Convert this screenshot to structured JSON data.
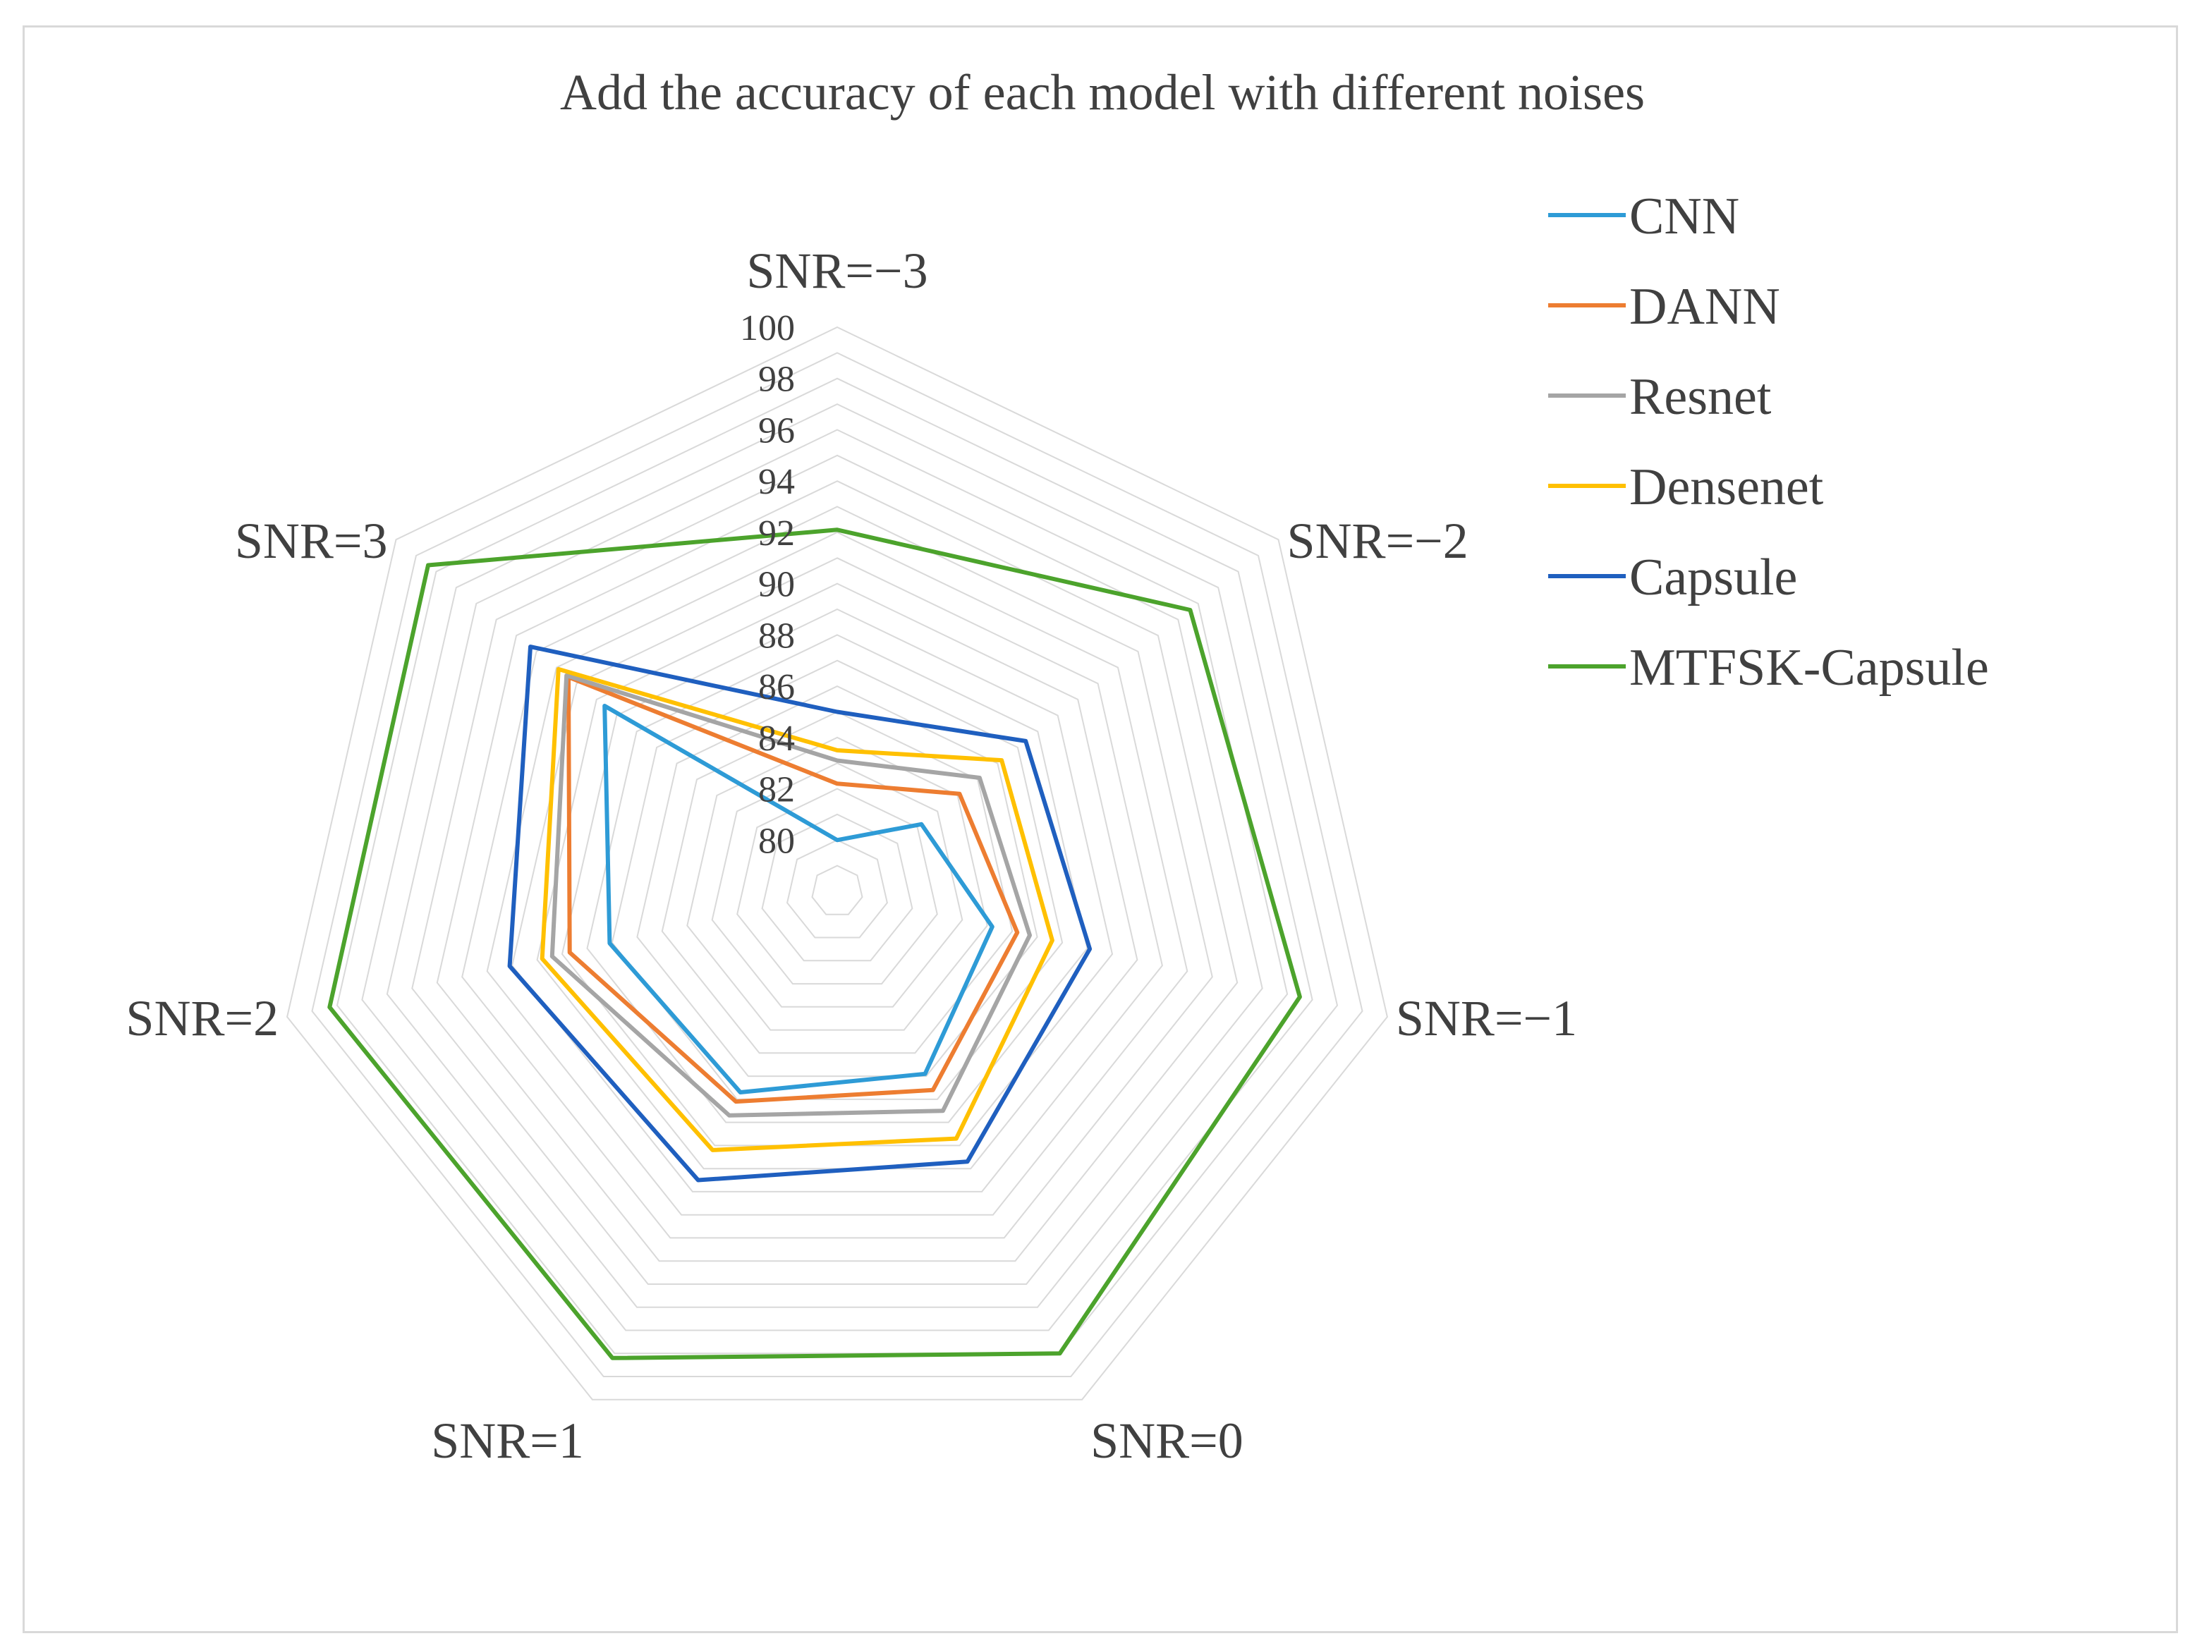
{
  "chart_data": {
    "type": "radar",
    "title": "Add the accuracy of each model with different noises",
    "axes": [
      "SNR=−3",
      "SNR=−2",
      "SNR=−1",
      "SNR=0",
      "SNR=1",
      "SNR=2",
      "SNR=3"
    ],
    "rlim": [
      78,
      100
    ],
    "ticks": [
      80,
      82,
      84,
      86,
      88,
      90,
      92,
      94,
      96,
      98,
      100
    ],
    "grid": true,
    "legend_position": "right",
    "series": [
      {
        "name": "CNN",
        "color": "#2E9BD6",
        "values": [
          80.0,
          82.2,
          84.2,
          85.9,
          86.7,
          87.1,
          89.6
        ]
      },
      {
        "name": "DANN",
        "color": "#ED7D31",
        "values": [
          82.2,
          84.1,
          85.2,
          86.6,
          87.1,
          88.7,
          91.4
        ]
      },
      {
        "name": "Resnet",
        "color": "#A5A5A5",
        "values": [
          83.1,
          85.1,
          85.7,
          87.5,
          87.7,
          89.4,
          91.5
        ]
      },
      {
        "name": "Densenet",
        "color": "#FFC000",
        "values": [
          83.5,
          86.2,
          86.6,
          88.7,
          89.2,
          89.8,
          91.9
        ]
      },
      {
        "name": "Capsule",
        "color": "#1F5FBF",
        "values": [
          85.0,
          87.4,
          88.1,
          89.7,
          90.5,
          91.1,
          93.3
        ]
      },
      {
        "name": "MTFSK-Capsule",
        "color": "#4CA32C",
        "values": [
          92.1,
          95.6,
          96.5,
          98.0,
          98.2,
          98.3,
          98.4
        ]
      }
    ]
  }
}
